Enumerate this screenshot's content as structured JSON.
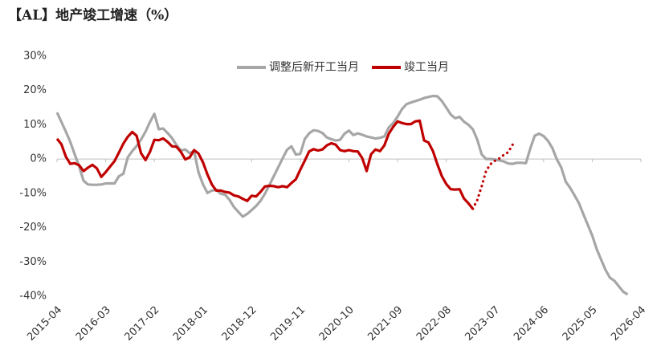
{
  "chart_data": {
    "type": "line",
    "title": "【AL】地产竣工增速（%）",
    "legend": "top",
    "categories": [
      "2015-04",
      null,
      null,
      null,
      null,
      null,
      null,
      null,
      null,
      null,
      null,
      "2016-03",
      null,
      null,
      null,
      null,
      null,
      null,
      null,
      null,
      null,
      null,
      "2017-02",
      null,
      null,
      null,
      null,
      null,
      null,
      null,
      null,
      null,
      null,
      "2018-01",
      null,
      null,
      null,
      null,
      null,
      null,
      null,
      null,
      null,
      null,
      "2018-12",
      null,
      null,
      null,
      null,
      null,
      null,
      null,
      null,
      null,
      null,
      "2019-11",
      null,
      null,
      null,
      null,
      null,
      null,
      null,
      null,
      null,
      null,
      "2020-10",
      null,
      null,
      null,
      null,
      null,
      null,
      null,
      null,
      null,
      null,
      "2021-09",
      null,
      null,
      null,
      null,
      null,
      null,
      null,
      null,
      null,
      null,
      "2022-08",
      null,
      null,
      null,
      null,
      null,
      null,
      null,
      null,
      null,
      null,
      "2023-07",
      null,
      null,
      null,
      null,
      null,
      null,
      null,
      null,
      null,
      null,
      "2024-06",
      null,
      null,
      null,
      null,
      null,
      null,
      null,
      null,
      null,
      null,
      "2025-05",
      null,
      null,
      null,
      null,
      null,
      null,
      null,
      null,
      null,
      null,
      "2026-04"
    ],
    "ylim": [
      -40,
      30
    ],
    "yticks": [
      {
        "value": 30,
        "label": "30%"
      },
      {
        "value": 20,
        "label": "20%"
      },
      {
        "value": 10,
        "label": "10%"
      },
      {
        "value": 0,
        "label": "0%"
      },
      {
        "value": -10,
        "label": "-10%"
      },
      {
        "value": -20,
        "label": "-20%"
      },
      {
        "value": -30,
        "label": "-30%"
      },
      {
        "value": -40,
        "label": "-40%"
      }
    ],
    "series": [
      {
        "name": "调整后新开工当月",
        "color": "#a6a6a6",
        "values": [
          13.6,
          10.8,
          8.0,
          5.0,
          1.4,
          -2.1,
          -6.3,
          -7.4,
          -7.5,
          -7.5,
          -7.4,
          -7.1,
          -7.1,
          -7.1,
          -5,
          -4.3,
          0.5,
          2.3,
          3.8,
          5.7,
          8.0,
          10.8,
          13.2,
          8.7,
          8.9,
          7.6,
          6.1,
          4.1,
          2.5,
          2.8,
          1.7,
          2.4,
          -3.9,
          -7.4,
          -9.9,
          -9.2,
          -9.0,
          -10.1,
          -10.4,
          -11.9,
          -14.0,
          -15.4,
          -16.8,
          -16.0,
          -14.9,
          -13.7,
          -12.2,
          -10.1,
          -7.6,
          -5.0,
          -2.4,
          0.2,
          2.7,
          3.7,
          1.3,
          1.5,
          5.8,
          7.5,
          8.4,
          8.2,
          7.6,
          6.3,
          5.8,
          5.4,
          5.6,
          7.4,
          8.3,
          7.0,
          7.5,
          7.1,
          6.6,
          6.3,
          6.0,
          6.2,
          6.6,
          9.2,
          10.5,
          12.4,
          14.6,
          16.0,
          16.5,
          16.9,
          17.3,
          17.8,
          18.1,
          18.4,
          18.3,
          16.9,
          15.0,
          13.0,
          11.9,
          12.3,
          10.9,
          10.0,
          8.7,
          5.7,
          1.4,
          0,
          0,
          -0.1,
          -0.4,
          -0.7,
          -1.3,
          -1.4,
          -1.1,
          -1.1,
          -1.2,
          3.1,
          6.8,
          7.4,
          6.7,
          5.3,
          3.2,
          -0.1,
          -2.5,
          -6.6,
          -8.4,
          -10.6,
          -12.9,
          -16.1,
          -19.2,
          -22.3,
          -26.2,
          -29.3,
          -32.3,
          -34.6,
          -35.5,
          -37.1,
          -38.7,
          -39.5,
          null,
          null,
          null
        ]
      },
      {
        "name": "竣工当月",
        "color": "#c00000",
        "values": [
          5.9,
          4.3,
          0.7,
          -1.4,
          -1.2,
          -1.8,
          -3.5,
          -2.5,
          -1.7,
          -2.7,
          -5.2,
          -3.8,
          -2.2,
          -0.6,
          1.9,
          4.5,
          6.5,
          7.9,
          6.8,
          1.7,
          -0.3,
          2.1,
          5.6,
          5.5,
          6.0,
          5.0,
          3.7,
          3.6,
          2.1,
          -0.1,
          0.5,
          2.6,
          1.6,
          -1.0,
          -4.5,
          -7.4,
          -9.2,
          -9.2,
          -9.6,
          -9.8,
          -10.6,
          -10.9,
          -11.6,
          -12.2,
          -10.7,
          -10.9,
          -9.6,
          -8.0,
          -7.8,
          -7.9,
          -8.2,
          -7.9,
          -8.2,
          -7.0,
          -5.9,
          -3.1,
          -0.5,
          2.2,
          2.9,
          2.5,
          2.8,
          4.0,
          4.6,
          4.2,
          2.6,
          2.3,
          2.6,
          2.3,
          2.2,
          0.3,
          -3.5,
          1.4,
          2.8,
          2.3,
          4.0,
          7.4,
          9.4,
          11.0,
          10.5,
          10.2,
          10.2,
          11.0,
          11.2,
          5.4,
          4.8,
          2.3,
          -1.6,
          -5.0,
          -7.3,
          -8.8,
          -8.9,
          -8.8,
          -11.5,
          -12.9,
          -14.5,
          null,
          null,
          null,
          null,
          null,
          null,
          null,
          null,
          null,
          null,
          null,
          null,
          null,
          null,
          null,
          null,
          null,
          null,
          null,
          null,
          null,
          null,
          null,
          null,
          null,
          null,
          null,
          null,
          null,
          null,
          null,
          null,
          null,
          null,
          null,
          null,
          null,
          null
        ],
        "projection": {
          "style": "dotted",
          "values": [
            null,
            null,
            null,
            null,
            null,
            null,
            null,
            null,
            null,
            null,
            null,
            null,
            null,
            null,
            null,
            null,
            null,
            null,
            null,
            null,
            null,
            null,
            null,
            null,
            null,
            null,
            null,
            null,
            null,
            null,
            null,
            null,
            null,
            null,
            null,
            null,
            null,
            null,
            null,
            null,
            null,
            null,
            null,
            null,
            null,
            null,
            null,
            null,
            null,
            null,
            null,
            null,
            null,
            null,
            null,
            null,
            null,
            null,
            null,
            null,
            null,
            null,
            null,
            null,
            null,
            null,
            null,
            null,
            null,
            null,
            null,
            null,
            null,
            null,
            null,
            null,
            null,
            null,
            null,
            null,
            null,
            null,
            null,
            null,
            null,
            null,
            null,
            null,
            null,
            null,
            null,
            null,
            null,
            null,
            -14.5,
            -12,
            -8,
            -3.5,
            -1.5,
            -0.5,
            0.2,
            1.2,
            2.0,
            4.2,
            null,
            null,
            null,
            null,
            null,
            null,
            null,
            null,
            null,
            null,
            null,
            null,
            null,
            null,
            null,
            null,
            null,
            null,
            null,
            null,
            null,
            null,
            null,
            null,
            null,
            null,
            null,
            null,
            null
          ]
        }
      }
    ]
  }
}
